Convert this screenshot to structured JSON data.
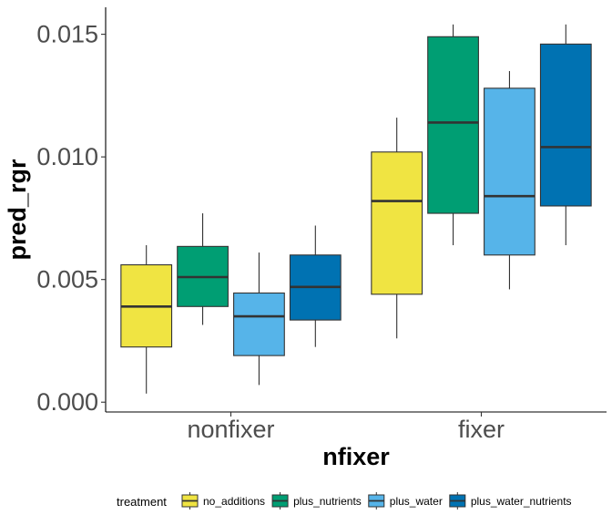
{
  "chart_data": {
    "type": "box",
    "xlabel": "nfixer",
    "ylabel": "pred_rgr",
    "categories": [
      "nonfixer",
      "fixer"
    ],
    "ylim": [
      -0.0004,
      0.0161
    ],
    "yticks": [
      0.0,
      0.005,
      0.01,
      0.015
    ],
    "ytick_labels": [
      "0.000",
      "0.005",
      "0.010",
      "0.015"
    ],
    "grid": false,
    "legend": {
      "title": "treatment",
      "position": "bottom"
    },
    "series": [
      {
        "name": "no_additions",
        "color": "#F0E442",
        "boxes": [
          {
            "category": "nonfixer",
            "min": 0.00035,
            "q1": 0.00225,
            "median": 0.0039,
            "q3": 0.0056,
            "max": 0.0064
          },
          {
            "category": "fixer",
            "min": 0.0026,
            "q1": 0.0044,
            "median": 0.0082,
            "q3": 0.0102,
            "max": 0.0116
          }
        ]
      },
      {
        "name": "plus_nutrients",
        "color": "#009E73",
        "boxes": [
          {
            "category": "nonfixer",
            "min": 0.00315,
            "q1": 0.0039,
            "median": 0.0051,
            "q3": 0.00635,
            "max": 0.0077
          },
          {
            "category": "fixer",
            "min": 0.0064,
            "q1": 0.0077,
            "median": 0.0114,
            "q3": 0.0149,
            "max": 0.0154
          }
        ]
      },
      {
        "name": "plus_water",
        "color": "#56B4E9",
        "boxes": [
          {
            "category": "nonfixer",
            "min": 0.0007,
            "q1": 0.0019,
            "median": 0.0035,
            "q3": 0.00445,
            "max": 0.0061
          },
          {
            "category": "fixer",
            "min": 0.0046,
            "q1": 0.006,
            "median": 0.0084,
            "q3": 0.0128,
            "max": 0.0135
          }
        ]
      },
      {
        "name": "plus_water_nutrients",
        "color": "#0072B2",
        "boxes": [
          {
            "category": "nonfixer",
            "min": 0.00225,
            "q1": 0.00335,
            "median": 0.0047,
            "q3": 0.006,
            "max": 0.0072
          },
          {
            "category": "fixer",
            "min": 0.0064,
            "q1": 0.008,
            "median": 0.0104,
            "q3": 0.0146,
            "max": 0.0154
          }
        ]
      }
    ]
  }
}
